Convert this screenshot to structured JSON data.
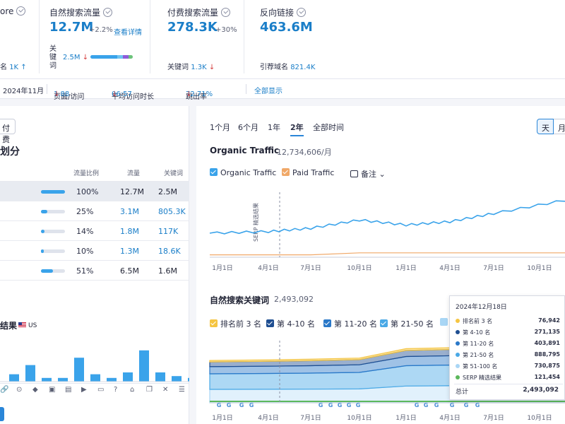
{
  "metrics": {
    "m0": {
      "title": "ore",
      "sub_label": "名",
      "sub_value": "1K",
      "sub_arrow": "↑"
    },
    "m1": {
      "title": "自然搜索流量",
      "value": "12.7M",
      "delta": "+2.2%",
      "link": "查看详情",
      "kw_label": "关键词",
      "kw_value": "2.5M",
      "kw_arrow": "↓"
    },
    "m2": {
      "title": "付费搜索流量",
      "value": "278.3K",
      "delta": "+30%",
      "sub_label": "关键词",
      "sub_value": "1.3K",
      "sub_arrow": "↓"
    },
    "m3": {
      "title": "反向链接",
      "value": "463.6M",
      "sub_label": "引荐域名",
      "sub_value": "821.4K"
    }
  },
  "row2": {
    "date": "2024年11月",
    "pages_label": "页面/访问",
    "pages_value": "1.88",
    "pages_arrow": "↓",
    "time_label": "平均访问时长",
    "time_value": "06:57",
    "time_arrow": "↓",
    "bounce_label": "跳出率",
    "bounce_value": "72.71%",
    "bounce_arrow": "↓",
    "show_all": "全部显示"
  },
  "left": {
    "paid_btn": "付费",
    "section_title": "划分",
    "headers": {
      "share": "流量比例",
      "traffic": "流量",
      "keywords": "关键词"
    },
    "rows": [
      {
        "share_text": "100%",
        "share": 1.0,
        "traffic": "12.7M",
        "keywords": "2.5M",
        "blue": false,
        "selected": true
      },
      {
        "share_text": "25%",
        "share": 0.25,
        "traffic": "3.1M",
        "keywords": "805.3K",
        "blue": true,
        "selected": false
      },
      {
        "share_text": "14%",
        "share": 0.14,
        "traffic": "1.8M",
        "keywords": "117K",
        "blue": true,
        "selected": false
      },
      {
        "share_text": "10%",
        "share": 0.1,
        "traffic": "1.3M",
        "keywords": "18.6K",
        "blue": true,
        "selected": false
      },
      {
        "share_text": "51%",
        "share": 0.51,
        "traffic": "6.5M",
        "keywords": "1.6M",
        "blue": false,
        "selected": false
      }
    ],
    "serp_title": "结果",
    "country": "US",
    "serp_icons": [
      "link-icon",
      "pin-icon",
      "diamond-icon",
      "image-icon",
      "gallery-icon",
      "video-icon",
      "comment-icon",
      "question-icon",
      "graduation-icon",
      "cards-icon",
      "x-icon",
      "list-icon"
    ]
  },
  "right": {
    "tabs": [
      "1个月",
      "6个月",
      "1年",
      "2年",
      "全部时间"
    ],
    "active_tab": "2年",
    "granularity": [
      "天",
      "月"
    ],
    "traffic_title": "Organic Traffic",
    "traffic_value": "12,734,606/月",
    "legend_organic": "Organic Traffic",
    "legend_paid": "Paid Traffic",
    "legend_notes": "备注",
    "serp_marker": "SERP 精选结果",
    "kw_title": "自然搜索关键词",
    "kw_value": "2,493,092",
    "kw_legend": [
      "排名前 3 名",
      "第 4-10 名",
      "第 11-20 名",
      "第 21-50 名"
    ],
    "x_ticks": [
      "1月1日",
      "4月1日",
      "7月1日",
      "10月1日",
      "1月1日",
      "4月1日",
      "7月1日",
      "10月1日"
    ]
  },
  "colors": {
    "organic": "#3aa3ea",
    "paid": "#f0a868",
    "top3": "#f5c542",
    "r4_10": "#1f4e91",
    "r11_20": "#2a78c8",
    "r21_50": "#4aa9e6",
    "r51_100": "#a9d6f5",
    "serp": "#5cb85c"
  },
  "tooltip": {
    "date": "2024年12月18日",
    "rows": [
      {
        "label": "排名前 3 名",
        "value": "76,942",
        "color": "#f5c542"
      },
      {
        "label": "第 4-10 名",
        "value": "271,135",
        "color": "#1f4e91"
      },
      {
        "label": "第 11-20 名",
        "value": "403,891",
        "color": "#2a78c8"
      },
      {
        "label": "第 21-50 名",
        "value": "888,795",
        "color": "#4aa9e6"
      },
      {
        "label": "第 51-100 名",
        "value": "730,875",
        "color": "#a9d6f5"
      },
      {
        "label": "SERP 精选结果",
        "value": "121,454",
        "color": "#5cb85c"
      }
    ],
    "total_label": "总计",
    "total_value": "2,493,092"
  },
  "chart_data": [
    {
      "type": "line",
      "title": "Organic Traffic",
      "subtitle": "12,734,606/月",
      "x": [
        "1月1日",
        "4月1日",
        "7月1日",
        "10月1日",
        "1月1日",
        "4月1日",
        "7月1日",
        "10月1日"
      ],
      "series": [
        {
          "name": "Organic Traffic",
          "values": [
            10.6,
            10.7,
            10.9,
            11.4,
            11.1,
            11.3,
            11.8,
            12.6
          ]
        },
        {
          "name": "Paid Traffic",
          "values": [
            0.1,
            0.1,
            0.1,
            0.3,
            0.3,
            0.3,
            0.3,
            0.3
          ]
        }
      ]
    },
    {
      "type": "area",
      "title": "自然搜索关键词",
      "subtitle": "2,493,092",
      "x": [
        "1月1日",
        "4月1日",
        "7月1日",
        "10月1日",
        "1月1日",
        "4月1日",
        "7月1日",
        "10月1日"
      ],
      "series": [
        {
          "name": "排名前 3 名",
          "values": [
            60000,
            62000,
            64000,
            66000,
            72000,
            74000,
            75000,
            76942
          ]
        },
        {
          "name": "第 4-10 名",
          "values": [
            200000,
            205000,
            210000,
            215000,
            255000,
            260000,
            265000,
            271135
          ]
        },
        {
          "name": "第 11-20 名",
          "values": [
            300000,
            305000,
            312000,
            320000,
            385000,
            392000,
            398000,
            403891
          ]
        },
        {
          "name": "第 21-50 名",
          "values": [
            650000,
            660000,
            670000,
            690000,
            850000,
            865000,
            875000,
            888795
          ]
        },
        {
          "name": "第 51-100 名",
          "values": [
            560000,
            565000,
            570000,
            580000,
            700000,
            712000,
            722000,
            730875
          ]
        }
      ]
    },
    {
      "type": "bar",
      "title": "",
      "values": [
        4,
        9,
        2,
        2,
        13,
        4,
        2,
        5,
        17,
        5,
        3,
        2,
        2
      ]
    }
  ]
}
